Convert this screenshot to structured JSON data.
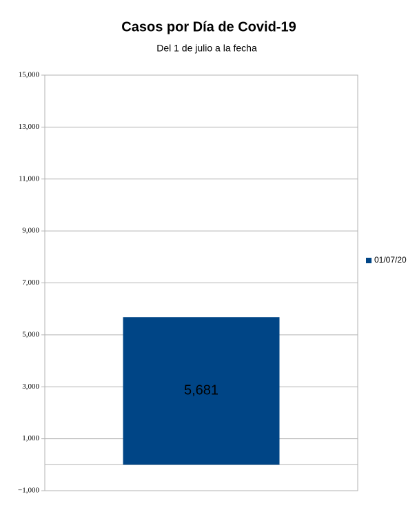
{
  "chart_data": {
    "type": "bar",
    "title": "Casos por Día de Covid-19",
    "subtitle": "Del 1 de julio a la fecha",
    "categories": [
      null
    ],
    "series": [
      {
        "name": "01/07/20",
        "color": "#004586",
        "values": [
          5681
        ],
        "value_labels": [
          "5,681"
        ]
      }
    ],
    "ylim": [
      -1000,
      15000
    ],
    "yticks": [
      {
        "value": -1000,
        "label": "−1,000"
      },
      {
        "value": 1000,
        "label": "1,000"
      },
      {
        "value": 3000,
        "label": "3,000"
      },
      {
        "value": 5000,
        "label": "5,000"
      },
      {
        "value": 7000,
        "label": "7,000"
      },
      {
        "value": 9000,
        "label": "9,000"
      },
      {
        "value": 11000,
        "label": "11,000"
      },
      {
        "value": 13000,
        "label": "13,000"
      },
      {
        "value": 15000,
        "label": "15,000"
      }
    ],
    "grid": true,
    "legend": "right"
  }
}
